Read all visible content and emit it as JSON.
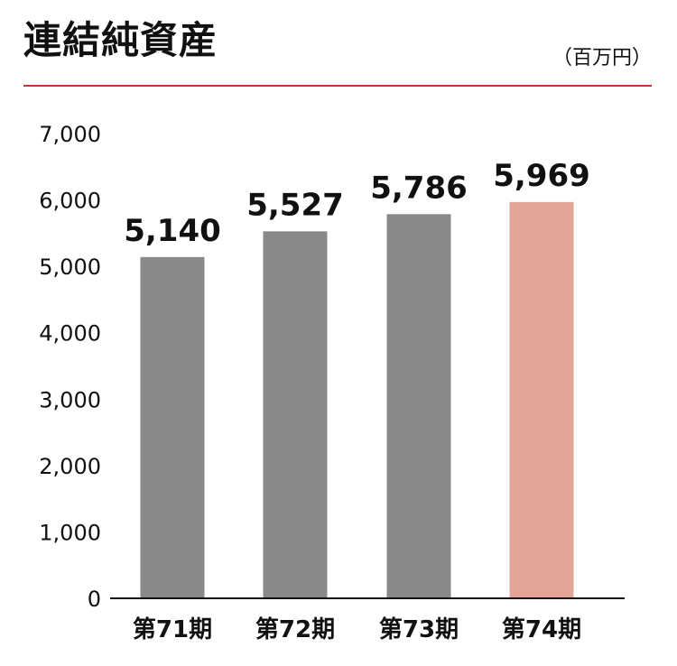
{
  "title": "連結純資産",
  "unit": "（百万円）",
  "colors": {
    "rule": "#c8323a",
    "bar": "#898989",
    "highlight": "#e3a598",
    "axis": "#111111"
  },
  "chart_data": {
    "type": "bar",
    "categories": [
      "第71期",
      "第72期",
      "第73期",
      "第74期"
    ],
    "values": [
      5140,
      5527,
      5786,
      5969
    ],
    "value_labels": [
      "5,140",
      "5,527",
      "5,786",
      "5,969"
    ],
    "highlight_index": 3,
    "ylim": [
      0,
      7000
    ],
    "yticks": [
      0,
      1000,
      2000,
      3000,
      4000,
      5000,
      6000,
      7000
    ],
    "ytick_labels": [
      "0",
      "1,000",
      "2,000",
      "3,000",
      "4,000",
      "5,000",
      "6,000",
      "7,000"
    ],
    "grid": false,
    "legend": "none"
  }
}
